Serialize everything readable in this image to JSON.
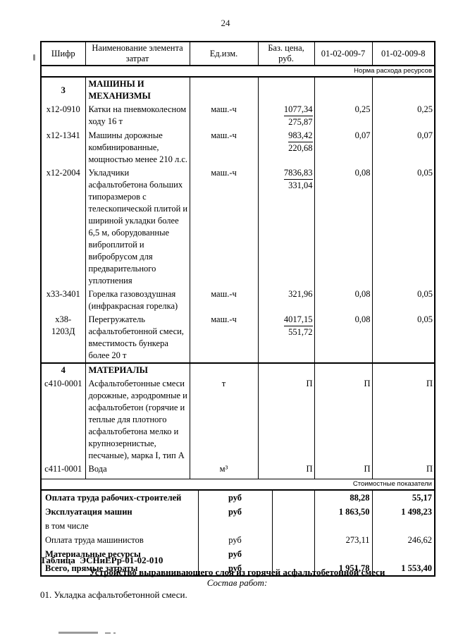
{
  "page": {
    "number": "24"
  },
  "colors": {
    "text": "#000000",
    "background": "#ffffff",
    "border": "#000000",
    "artifact": "#9a9a9a"
  },
  "table": {
    "headers": [
      "Шифр",
      "Наименование элемента затрат",
      "Ед.изм.",
      "Баз. цена, руб.",
      "01-02-009-7",
      "01-02-009-8"
    ],
    "norm_banner": "Норма расхода ресурсов",
    "cost_banner": "Стоимостные показатели",
    "rows": [
      {
        "code": "3",
        "name": "МАШИНЫ И МЕХАНИЗМЫ",
        "unit": "",
        "price_top": "",
        "price_bottom": "",
        "v7": "",
        "v8": "",
        "bold": true,
        "section_start": true
      },
      {
        "code": "х12-0910",
        "name": "Катки на пневмоколесном ходу 16 т",
        "unit": "маш.-ч",
        "price_top": "1077,34",
        "price_bottom": "275,87",
        "v7": "0,25",
        "v8": "0,25",
        "bold": false,
        "section_start": false
      },
      {
        "code": "х12-1341",
        "name": "Машины дорожные комбинированные, мощностью менее 210 л.с.",
        "unit": "маш.-ч",
        "price_top": "983,42",
        "price_bottom": "220,68",
        "v7": "0,07",
        "v8": "0,07",
        "bold": false,
        "section_start": false
      },
      {
        "code": "х12-2004",
        "name": "Укладчики асфальтобетона больших типоразмеров с телескопической плитой и шириной укладки более 6,5 м, оборудованные виброплитой и вибробрусом для предварительного уплотнения",
        "unit": "маш.-ч",
        "price_top": "7836,83",
        "price_bottom": "331,04",
        "v7": "0,08",
        "v8": "0,05",
        "bold": false,
        "section_start": false
      },
      {
        "code": "х33-3401",
        "name": "Горелка газовоздушная (инфракрасная горелка)",
        "unit": "маш.-ч",
        "price_top": "321,96",
        "price_bottom": "",
        "v7": "0,08",
        "v8": "0,05",
        "bold": false,
        "section_start": false
      },
      {
        "code": "х38-1203Д",
        "name": "Перегружатель асфальтобетонной смеси, вместимость бункера более 20 т",
        "unit": "маш.-ч",
        "price_top": "4017,15",
        "price_bottom": "551,72",
        "v7": "0,08",
        "v8": "0,05",
        "bold": false,
        "section_start": false
      },
      {
        "code": "4",
        "name": "МАТЕРИАЛЫ",
        "unit": "",
        "price_top": "",
        "price_bottom": "",
        "v7": "",
        "v8": "",
        "bold": true,
        "section_start": true
      },
      {
        "code": "с410-0001",
        "name": "Асфальтобетонные смеси дорожные, аэродромные и асфальтобетон (горячие и теплые для плотного асфальтобетона мелко и крупнозернистые, песчаные), марка I, тип А",
        "unit": "т",
        "price_top": "П",
        "price_bottom": "",
        "v7": "П",
        "v8": "П",
        "bold": false,
        "section_start": false
      },
      {
        "code": "с411-0001",
        "name": "Вода",
        "unit": "м³",
        "price_top": "П",
        "price_bottom": "",
        "v7": "П",
        "v8": "П",
        "bold": false,
        "section_start": false
      }
    ],
    "summary": [
      {
        "label": "Оплата труда рабочих-строителей",
        "unit": "руб",
        "v7": "88,28",
        "v8": "55,17",
        "bold": true
      },
      {
        "label": "Эксплуатация машин",
        "unit": "руб",
        "v7": "1 863,50",
        "v8": "1 498,23",
        "bold": true
      },
      {
        "label": "в том числе",
        "unit": "",
        "v7": "",
        "v8": "",
        "bold": false
      },
      {
        "label": "Оплата труда машинистов",
        "unit": "руб",
        "v7": "273,11",
        "v8": "246,62",
        "bold": false
      },
      {
        "label": "Материальные ресурсы",
        "unit": "руб",
        "v7": "",
        "v8": "",
        "bold": true
      },
      {
        "label": "Всего, прямые затраты",
        "unit": "руб",
        "v7": "1 951,78",
        "v8": "1 553,40",
        "bold": true
      }
    ]
  },
  "footer": {
    "table_label": "Таблица  ЭСНиЕРр-01-02-010",
    "title": "Устройство выравнивающего слоя из горячей асфальтобетонной смеси",
    "subtitle": "Состав работ:",
    "work_items": [
      "01. Укладка асфальтобетонной смеси."
    ]
  }
}
